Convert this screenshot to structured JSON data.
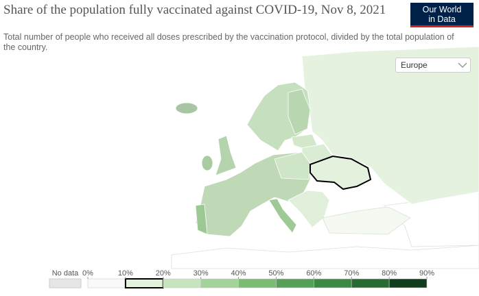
{
  "header": {
    "title": "Share of the population fully vaccinated against COVID-19, Nov 8, 2021",
    "subtitle": "Total number of people who received all doses prescribed by the vaccination protocol, divided by the total population of the country.",
    "logo": [
      "Our World",
      "in Data"
    ]
  },
  "controls": {
    "region": "Europe"
  },
  "legend": {
    "no_data": "No data",
    "no_data_color": "#e6e6e6",
    "ticks": [
      {
        "value": 0,
        "label": "0%"
      },
      {
        "value": 10,
        "label": "10%"
      },
      {
        "value": 20,
        "label": "20%"
      },
      {
        "value": 30,
        "label": "30%"
      },
      {
        "value": 40,
        "label": "40%"
      },
      {
        "value": 50,
        "label": "50%"
      },
      {
        "value": 60,
        "label": "60%"
      },
      {
        "value": 70,
        "label": "70%"
      },
      {
        "value": 80,
        "label": "80%"
      },
      {
        "value": 90,
        "label": "90%"
      }
    ],
    "colors": [
      "#f9f9f9",
      "#e3f1dd",
      "#c6e4be",
      "#a3d29a",
      "#7bbb73",
      "#56a05a",
      "#3a8a45",
      "#276b33",
      "#113d1d"
    ],
    "selected_range": [
      10,
      20
    ]
  }
}
